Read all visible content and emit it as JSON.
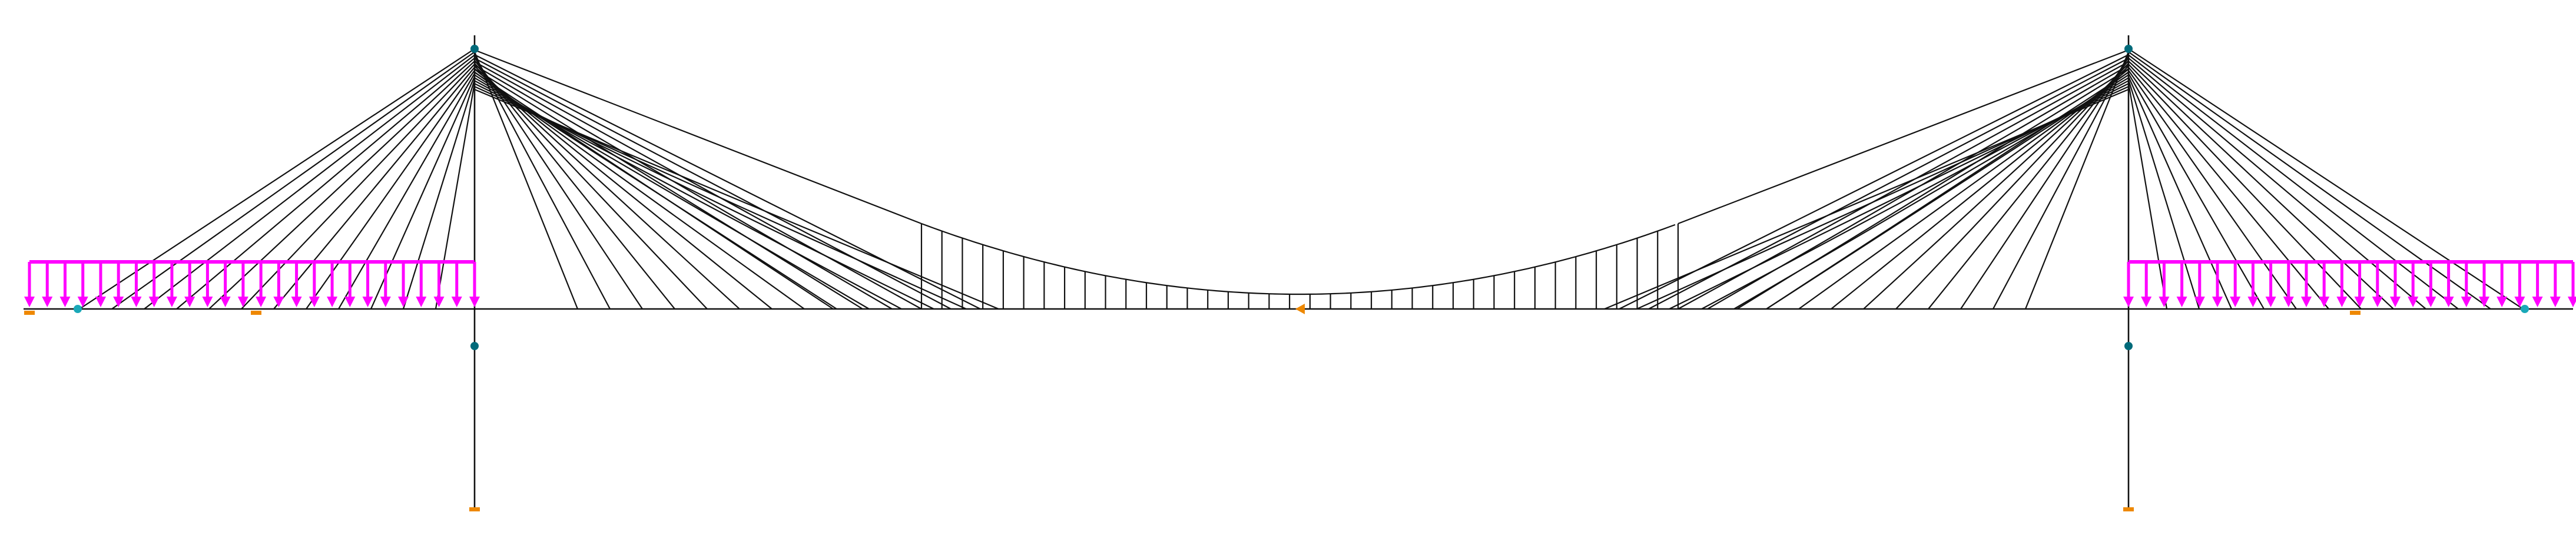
{
  "diagram": {
    "type": "cable-stayed bridge structural model",
    "labels": [],
    "colors": {
      "background": "#ffffff",
      "member_line": "#111111",
      "load": "#ff00ff",
      "support": "#ee8800",
      "node": "#006a7a",
      "node_alt": "#1aa8b8"
    },
    "icons": {
      "support": "support-icon",
      "node": "node-icon",
      "load_arrow": "distributed-load-arrow-icon"
    },
    "structure": {
      "towers": 2,
      "main_span_cables_per_tower_side": 15,
      "back_span_cables_per_tower_side": 12,
      "hangers_in_main_span": 38,
      "distributed_load_arrows_per_back_span": 26
    }
  }
}
